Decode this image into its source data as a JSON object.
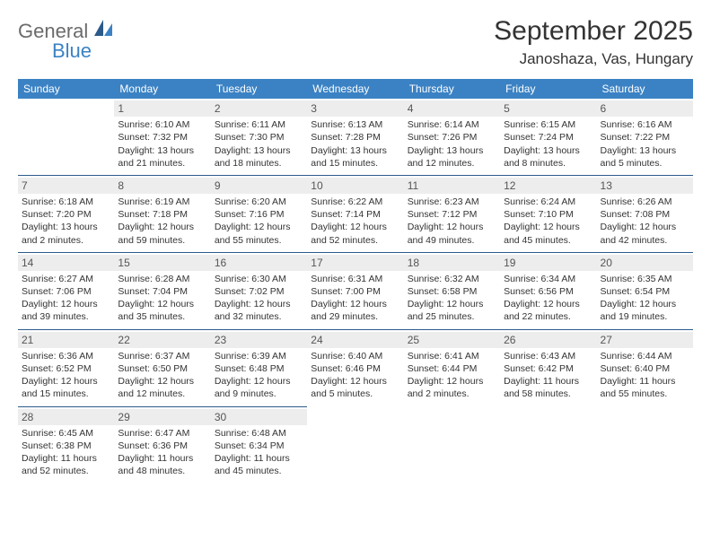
{
  "brand": {
    "main": "General",
    "sub": "Blue"
  },
  "title": "September 2025",
  "location": "Janoshaza, Vas, Hungary",
  "colors": {
    "header_bg": "#3b82c4",
    "header_text": "#ffffff",
    "row_border": "#2c5a8a",
    "daynum_bg": "#ededed",
    "text": "#333333",
    "logo_gray": "#6b6b6b",
    "logo_blue": "#3b82c4"
  },
  "weekdays": [
    "Sunday",
    "Monday",
    "Tuesday",
    "Wednesday",
    "Thursday",
    "Friday",
    "Saturday"
  ],
  "weeks": [
    [
      {
        "empty": true
      },
      {
        "day": "1",
        "sunrise": "Sunrise: 6:10 AM",
        "sunset": "Sunset: 7:32 PM",
        "dl1": "Daylight: 13 hours",
        "dl2": "and 21 minutes."
      },
      {
        "day": "2",
        "sunrise": "Sunrise: 6:11 AM",
        "sunset": "Sunset: 7:30 PM",
        "dl1": "Daylight: 13 hours",
        "dl2": "and 18 minutes."
      },
      {
        "day": "3",
        "sunrise": "Sunrise: 6:13 AM",
        "sunset": "Sunset: 7:28 PM",
        "dl1": "Daylight: 13 hours",
        "dl2": "and 15 minutes."
      },
      {
        "day": "4",
        "sunrise": "Sunrise: 6:14 AM",
        "sunset": "Sunset: 7:26 PM",
        "dl1": "Daylight: 13 hours",
        "dl2": "and 12 minutes."
      },
      {
        "day": "5",
        "sunrise": "Sunrise: 6:15 AM",
        "sunset": "Sunset: 7:24 PM",
        "dl1": "Daylight: 13 hours",
        "dl2": "and 8 minutes."
      },
      {
        "day": "6",
        "sunrise": "Sunrise: 6:16 AM",
        "sunset": "Sunset: 7:22 PM",
        "dl1": "Daylight: 13 hours",
        "dl2": "and 5 minutes."
      }
    ],
    [
      {
        "day": "7",
        "sunrise": "Sunrise: 6:18 AM",
        "sunset": "Sunset: 7:20 PM",
        "dl1": "Daylight: 13 hours",
        "dl2": "and 2 minutes."
      },
      {
        "day": "8",
        "sunrise": "Sunrise: 6:19 AM",
        "sunset": "Sunset: 7:18 PM",
        "dl1": "Daylight: 12 hours",
        "dl2": "and 59 minutes."
      },
      {
        "day": "9",
        "sunrise": "Sunrise: 6:20 AM",
        "sunset": "Sunset: 7:16 PM",
        "dl1": "Daylight: 12 hours",
        "dl2": "and 55 minutes."
      },
      {
        "day": "10",
        "sunrise": "Sunrise: 6:22 AM",
        "sunset": "Sunset: 7:14 PM",
        "dl1": "Daylight: 12 hours",
        "dl2": "and 52 minutes."
      },
      {
        "day": "11",
        "sunrise": "Sunrise: 6:23 AM",
        "sunset": "Sunset: 7:12 PM",
        "dl1": "Daylight: 12 hours",
        "dl2": "and 49 minutes."
      },
      {
        "day": "12",
        "sunrise": "Sunrise: 6:24 AM",
        "sunset": "Sunset: 7:10 PM",
        "dl1": "Daylight: 12 hours",
        "dl2": "and 45 minutes."
      },
      {
        "day": "13",
        "sunrise": "Sunrise: 6:26 AM",
        "sunset": "Sunset: 7:08 PM",
        "dl1": "Daylight: 12 hours",
        "dl2": "and 42 minutes."
      }
    ],
    [
      {
        "day": "14",
        "sunrise": "Sunrise: 6:27 AM",
        "sunset": "Sunset: 7:06 PM",
        "dl1": "Daylight: 12 hours",
        "dl2": "and 39 minutes."
      },
      {
        "day": "15",
        "sunrise": "Sunrise: 6:28 AM",
        "sunset": "Sunset: 7:04 PM",
        "dl1": "Daylight: 12 hours",
        "dl2": "and 35 minutes."
      },
      {
        "day": "16",
        "sunrise": "Sunrise: 6:30 AM",
        "sunset": "Sunset: 7:02 PM",
        "dl1": "Daylight: 12 hours",
        "dl2": "and 32 minutes."
      },
      {
        "day": "17",
        "sunrise": "Sunrise: 6:31 AM",
        "sunset": "Sunset: 7:00 PM",
        "dl1": "Daylight: 12 hours",
        "dl2": "and 29 minutes."
      },
      {
        "day": "18",
        "sunrise": "Sunrise: 6:32 AM",
        "sunset": "Sunset: 6:58 PM",
        "dl1": "Daylight: 12 hours",
        "dl2": "and 25 minutes."
      },
      {
        "day": "19",
        "sunrise": "Sunrise: 6:34 AM",
        "sunset": "Sunset: 6:56 PM",
        "dl1": "Daylight: 12 hours",
        "dl2": "and 22 minutes."
      },
      {
        "day": "20",
        "sunrise": "Sunrise: 6:35 AM",
        "sunset": "Sunset: 6:54 PM",
        "dl1": "Daylight: 12 hours",
        "dl2": "and 19 minutes."
      }
    ],
    [
      {
        "day": "21",
        "sunrise": "Sunrise: 6:36 AM",
        "sunset": "Sunset: 6:52 PM",
        "dl1": "Daylight: 12 hours",
        "dl2": "and 15 minutes."
      },
      {
        "day": "22",
        "sunrise": "Sunrise: 6:37 AM",
        "sunset": "Sunset: 6:50 PM",
        "dl1": "Daylight: 12 hours",
        "dl2": "and 12 minutes."
      },
      {
        "day": "23",
        "sunrise": "Sunrise: 6:39 AM",
        "sunset": "Sunset: 6:48 PM",
        "dl1": "Daylight: 12 hours",
        "dl2": "and 9 minutes."
      },
      {
        "day": "24",
        "sunrise": "Sunrise: 6:40 AM",
        "sunset": "Sunset: 6:46 PM",
        "dl1": "Daylight: 12 hours",
        "dl2": "and 5 minutes."
      },
      {
        "day": "25",
        "sunrise": "Sunrise: 6:41 AM",
        "sunset": "Sunset: 6:44 PM",
        "dl1": "Daylight: 12 hours",
        "dl2": "and 2 minutes."
      },
      {
        "day": "26",
        "sunrise": "Sunrise: 6:43 AM",
        "sunset": "Sunset: 6:42 PM",
        "dl1": "Daylight: 11 hours",
        "dl2": "and 58 minutes."
      },
      {
        "day": "27",
        "sunrise": "Sunrise: 6:44 AM",
        "sunset": "Sunset: 6:40 PM",
        "dl1": "Daylight: 11 hours",
        "dl2": "and 55 minutes."
      }
    ],
    [
      {
        "day": "28",
        "sunrise": "Sunrise: 6:45 AM",
        "sunset": "Sunset: 6:38 PM",
        "dl1": "Daylight: 11 hours",
        "dl2": "and 52 minutes."
      },
      {
        "day": "29",
        "sunrise": "Sunrise: 6:47 AM",
        "sunset": "Sunset: 6:36 PM",
        "dl1": "Daylight: 11 hours",
        "dl2": "and 48 minutes."
      },
      {
        "day": "30",
        "sunrise": "Sunrise: 6:48 AM",
        "sunset": "Sunset: 6:34 PM",
        "dl1": "Daylight: 11 hours",
        "dl2": "and 45 minutes."
      },
      {
        "empty": true
      },
      {
        "empty": true
      },
      {
        "empty": true
      },
      {
        "empty": true
      }
    ]
  ]
}
